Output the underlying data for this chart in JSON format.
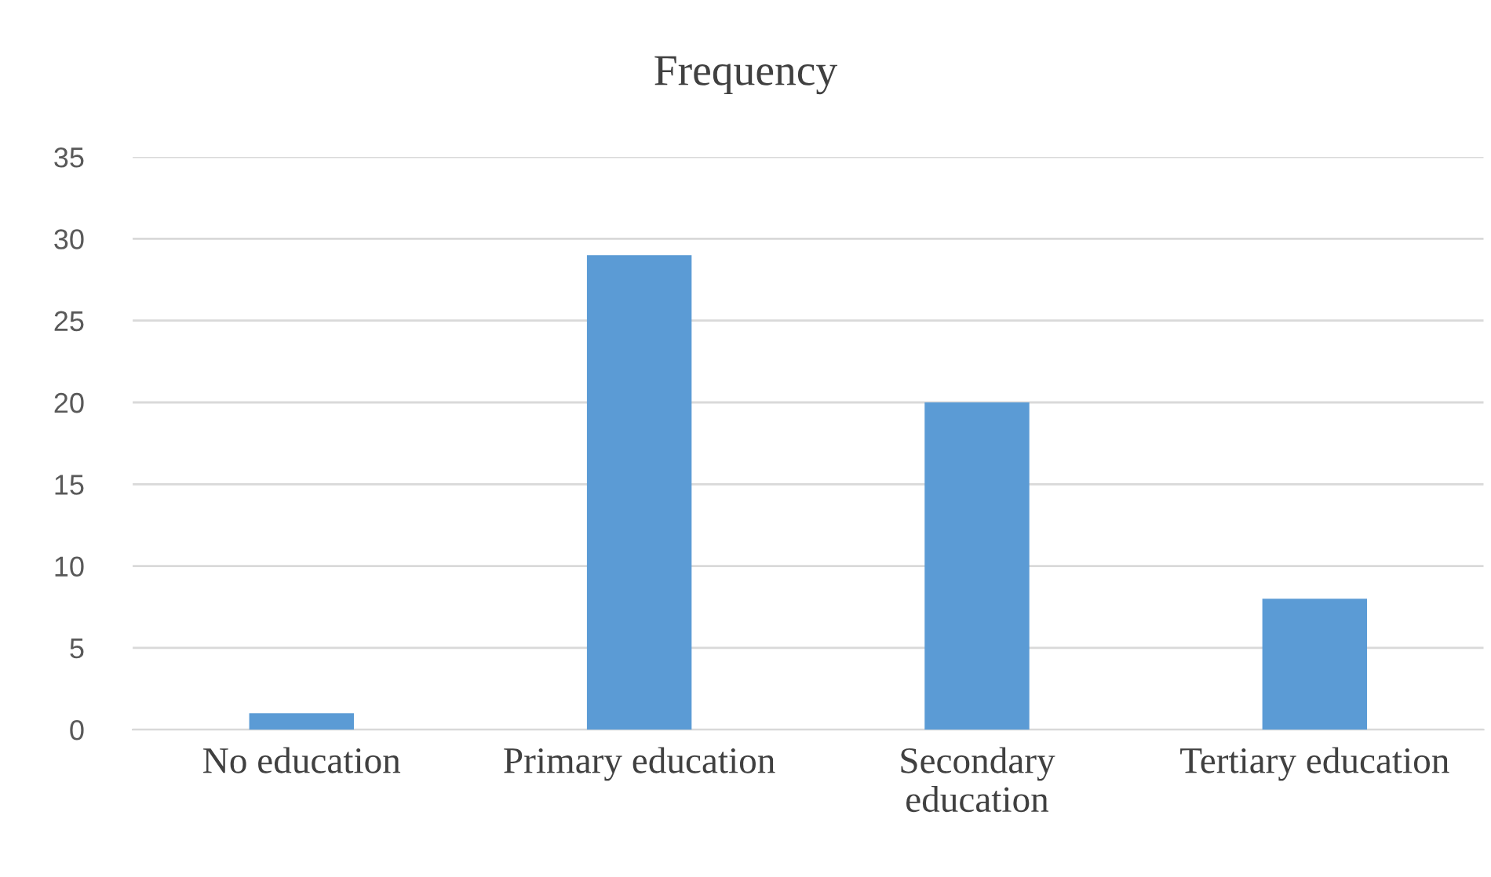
{
  "chart_data": {
    "type": "bar",
    "title": "Frequency",
    "categories": [
      "No education",
      "Primary education",
      "Secondary\neducation",
      "Tertiary education"
    ],
    "values": [
      1,
      29,
      20,
      8
    ],
    "color": "#5b9bd5",
    "ylim": [
      0,
      35
    ],
    "yticks": [
      0,
      5,
      10,
      15,
      20,
      25,
      30,
      35
    ],
    "grid": "y",
    "legend": false
  }
}
